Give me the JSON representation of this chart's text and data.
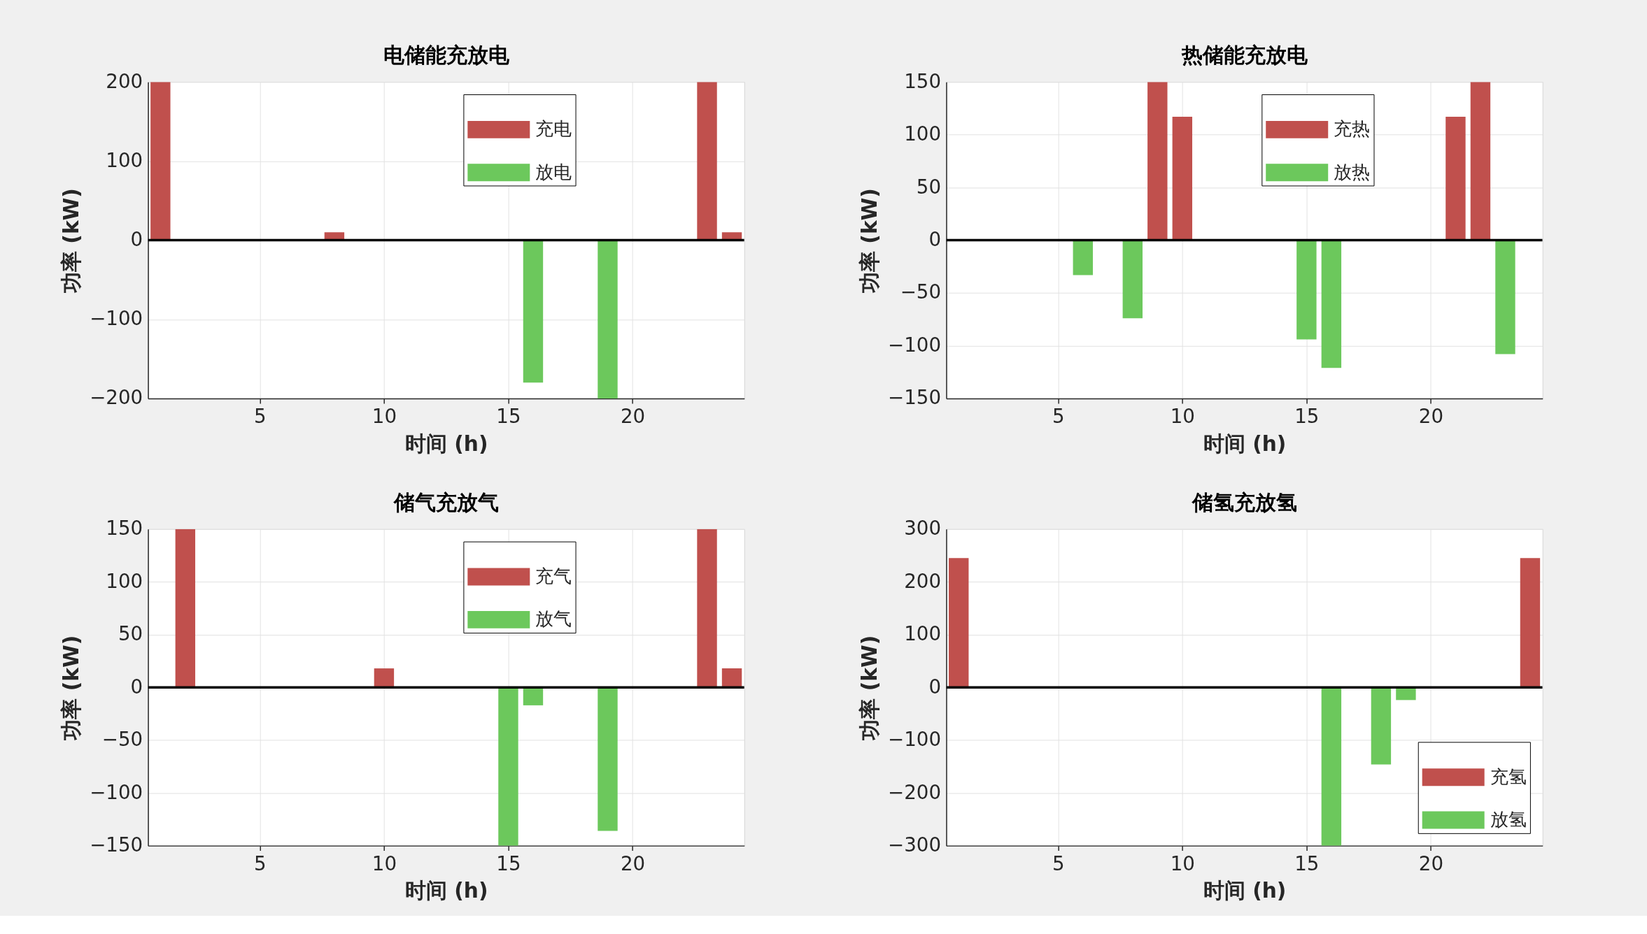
{
  "chart_data": [
    {
      "type": "bar",
      "title": "电储能充放电",
      "xlabel": "时间 (h)",
      "ylabel": "功率 (kW)",
      "xlim": [
        0.5,
        24.5
      ],
      "xticks": [
        5,
        10,
        15,
        20
      ],
      "ylim": [
        -200,
        200
      ],
      "yticks": [
        -200,
        -100,
        0,
        100,
        200
      ],
      "grid": true,
      "legend": "top",
      "series": [
        {
          "name": "充电",
          "color": "#c0504d",
          "x": [
            1,
            8,
            23,
            24
          ],
          "values": [
            200,
            10,
            200,
            10
          ]
        },
        {
          "name": "放电",
          "color": "#6cc85c",
          "x": [
            16,
            19
          ],
          "values": [
            -180,
            -200
          ]
        }
      ],
      "ref_lines": [
        {
          "axis": "y",
          "value": 0,
          "color": "#000000"
        }
      ]
    },
    {
      "type": "bar",
      "title": "热储能充放电",
      "xlabel": "时间 (h)",
      "ylabel": "功率 (kW)",
      "xlim": [
        0.5,
        24.5
      ],
      "xticks": [
        5,
        10,
        15,
        20
      ],
      "ylim": [
        -150,
        150
      ],
      "yticks": [
        -150,
        -100,
        -50,
        0,
        50,
        100,
        150
      ],
      "grid": true,
      "legend": "top",
      "series": [
        {
          "name": "充热",
          "color": "#c0504d",
          "x": [
            9,
            10,
            21,
            22
          ],
          "values": [
            150,
            117,
            117,
            150
          ]
        },
        {
          "name": "放热",
          "color": "#6cc85c",
          "x": [
            6,
            8,
            15,
            16,
            23
          ],
          "values": [
            -33,
            -74,
            -94,
            -121,
            -108
          ]
        }
      ],
      "ref_lines": [
        {
          "axis": "y",
          "value": 0,
          "color": "#000000"
        }
      ]
    },
    {
      "type": "bar",
      "title": "储气充放气",
      "xlabel": "时间 (h)",
      "ylabel": "功率 (kW)",
      "xlim": [
        0.5,
        24.5
      ],
      "xticks": [
        5,
        10,
        15,
        20
      ],
      "ylim": [
        -150,
        150
      ],
      "yticks": [
        -150,
        -100,
        -50,
        0,
        50,
        100,
        150
      ],
      "grid": true,
      "legend": "top",
      "series": [
        {
          "name": "充气",
          "color": "#c0504d",
          "x": [
            2,
            10,
            23,
            24
          ],
          "values": [
            150,
            18,
            150,
            18
          ]
        },
        {
          "name": "放气",
          "color": "#6cc85c",
          "x": [
            15,
            16,
            19
          ],
          "values": [
            -150,
            -17,
            -136
          ]
        }
      ],
      "ref_lines": [
        {
          "axis": "y",
          "value": 0,
          "color": "#000000"
        }
      ]
    },
    {
      "type": "bar",
      "title": "储氢充放氢",
      "xlabel": "时间 (h)",
      "ylabel": "功率 (kW)",
      "xlim": [
        0.5,
        24.5
      ],
      "xticks": [
        5,
        10,
        15,
        20
      ],
      "ylim": [
        -300,
        300
      ],
      "yticks": [
        -300,
        -200,
        -100,
        0,
        100,
        200,
        300
      ],
      "grid": true,
      "legend": "bottom right",
      "series": [
        {
          "name": "充氢",
          "color": "#c0504d",
          "x": [
            1,
            24
          ],
          "values": [
            245,
            245
          ]
        },
        {
          "name": "放氢",
          "color": "#6cc85c",
          "x": [
            16,
            18,
            19
          ],
          "values": [
            -300,
            -146,
            -24
          ]
        }
      ],
      "ref_lines": [
        {
          "axis": "y",
          "value": 0,
          "color": "#000000"
        }
      ]
    }
  ]
}
